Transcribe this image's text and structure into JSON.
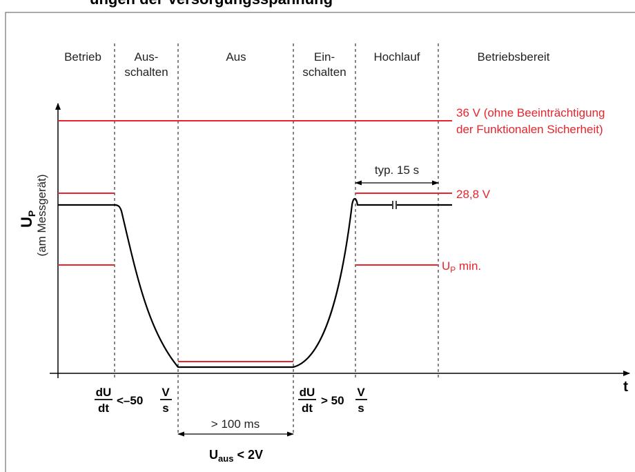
{
  "title": "ungen der Versorgungsspannung",
  "phases": [
    "Betrieb",
    "Aus-\nschalten",
    "Aus",
    "Ein-\nschalten",
    "Hochlauf",
    "Betriebsbereit"
  ],
  "y_axis": {
    "symbol": "U",
    "subscript": "P",
    "sublabel": "(am Messgerät)"
  },
  "x_axis": {
    "label": "t"
  },
  "levels": {
    "v36_line1": "36 V (ohne Beeinträchtigung",
    "v36_line2": "der Funktionalen Sicherheit)",
    "v28": "28,8 V",
    "up_min_symbol": "U",
    "up_min_sub": "P",
    "up_min_suffix": " min."
  },
  "annotations": {
    "typ": "typ. 15 s",
    "ms100": "> 100 ms",
    "du_num": "dU",
    "du_den": "dt",
    "fall_rate": "<–50",
    "rise_rate": "> 50",
    "v_num": "V",
    "s_den": "s",
    "uaus_symbol": "U",
    "uaus_sub": "aus",
    "uaus_value": " < 2V"
  },
  "colors": {
    "red": "#e8232b",
    "black": "#000000",
    "dashed": "#333333"
  }
}
